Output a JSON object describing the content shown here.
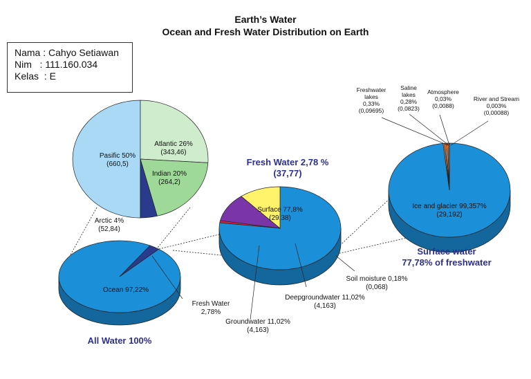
{
  "title_line1": "Earth’s Water",
  "title_line2": "Ocean and Fresh Water Distribution on Earth",
  "info": {
    "nama": "Nama : Cahyo Setiawan",
    "nim": "Nim   : 111.160.034",
    "kelas": "Kelas  : E"
  },
  "chart_data": [
    {
      "type": "pie",
      "caption": "All Water 100%",
      "slices": [
        {
          "label": "Ocean 97,22%",
          "percent": 97.22,
          "color": "#1b8fd8"
        },
        {
          "label": "Fresh Water\n2,78%",
          "percent": 2.78,
          "color": "#2a3a8c"
        }
      ]
    },
    {
      "type": "pie",
      "slices": [
        {
          "label": "Pasific 50%\n(660,5)",
          "percent": 50,
          "value": 660.5,
          "color": "#a9d9f5"
        },
        {
          "label": "Atlantic 26%\n(343,46)",
          "percent": 26,
          "value": 343.46,
          "color": "#cfeccc"
        },
        {
          "label": "Indian 20%\n(264,2)",
          "percent": 20,
          "value": 264.2,
          "color": "#9fd99a"
        },
        {
          "label": "Arctic 4%\n(52,84)",
          "percent": 4,
          "value": 52.84,
          "color": "#2a3a8c"
        }
      ]
    },
    {
      "type": "pie",
      "caption": "Fresh Water 2,78 %\n(37,77)",
      "slices": [
        {
          "label": "Surface 77,8%\n(29,38)",
          "percent": 77.78,
          "value": 29.38,
          "color": "#1b8fd8"
        },
        {
          "label": "Soil moisture 0,18%\n(0,068)",
          "percent": 0.18,
          "value": 0.068,
          "color": "#e8223a"
        },
        {
          "label": "Deepgroundwater 11,02%\n(4,163)",
          "percent": 11.02,
          "value": 4.163,
          "color": "#7a35a8"
        },
        {
          "label": "Groundwater 11,02%\n(4,163)",
          "percent": 11.02,
          "value": 4.163,
          "color": "#fff36b"
        }
      ]
    },
    {
      "type": "pie",
      "caption": "Surface water\n77,78% of freshwater",
      "slices": [
        {
          "label": "Ice and glacier 99,357%\n(29,192)",
          "percent": 99.357,
          "value": 29.192,
          "color": "#1b8fd8"
        },
        {
          "label": "Freshwater\nlakes\n0,33%\n(0,09695)",
          "percent": 0.33,
          "value": 0.09695,
          "color": "#e8733a"
        },
        {
          "label": "Saline\nlakes\n0,28%\n(0,0823)",
          "percent": 0.28,
          "value": 0.0823,
          "color": "#ef8f4a"
        },
        {
          "label": "Atmosphere\n0,03%\n(0,0088)",
          "percent": 0.03,
          "value": 0.0088,
          "color": "#f5a05a"
        },
        {
          "label": "River and Stream\n0,003%\n(0,00088)",
          "percent": 0.003,
          "value": 0.00088,
          "color": "#d9602a"
        }
      ]
    }
  ]
}
